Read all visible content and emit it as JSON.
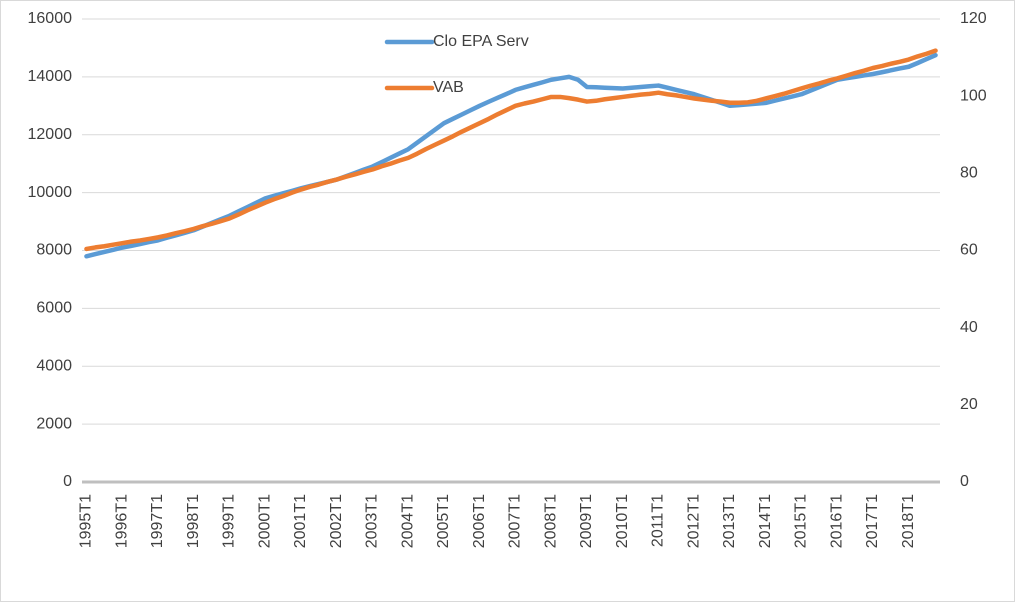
{
  "chart_data": {
    "type": "line",
    "categories": [
      "1995T1",
      null,
      null,
      null,
      "1996T1",
      null,
      null,
      null,
      "1997T1",
      null,
      null,
      null,
      "1998T1",
      null,
      null,
      null,
      "1999T1",
      null,
      null,
      null,
      "2000T1",
      null,
      null,
      null,
      "2001T1",
      null,
      null,
      null,
      "2002T1",
      null,
      null,
      null,
      "2003T1",
      null,
      null,
      null,
      "2004T1",
      null,
      null,
      null,
      "2005T1",
      null,
      null,
      null,
      "2006T1",
      null,
      null,
      null,
      "2007T1",
      null,
      null,
      null,
      "2008T1",
      null,
      null,
      null,
      "2009T1",
      null,
      null,
      null,
      "2010T1",
      null,
      null,
      null,
      "2011T1",
      null,
      null,
      null,
      "2012T1",
      null,
      null,
      null,
      "2013T1",
      null,
      null,
      null,
      "2014T1",
      null,
      null,
      null,
      "2015T1",
      null,
      null,
      null,
      "2016T1",
      null,
      null,
      null,
      "2017T1",
      null,
      null,
      null,
      "2018T1",
      null,
      null,
      null
    ],
    "series": [
      {
        "name": "Clo EPA Serv",
        "color": "#5b9bd5",
        "values": [
          7800,
          7875,
          7950,
          8025,
          8100,
          8160,
          8225,
          8290,
          8350,
          8440,
          8525,
          8610,
          8700,
          8825,
          8950,
          9075,
          9200,
          9350,
          9500,
          9650,
          9800,
          9890,
          9975,
          10060,
          10150,
          10225,
          10300,
          10375,
          10450,
          10560,
          10675,
          10790,
          10900,
          11050,
          11200,
          11350,
          11500,
          11725,
          11950,
          12175,
          12400,
          12550,
          12700,
          12850,
          13000,
          13140,
          13275,
          13410,
          13550,
          13640,
          13725,
          13810,
          13900,
          13950,
          14000,
          13900,
          13650,
          13640,
          13625,
          13610,
          13600,
          13625,
          13650,
          13675,
          13700,
          13625,
          13550,
          13475,
          13400,
          13300,
          13200,
          13100,
          13000,
          13025,
          13050,
          13075,
          13100,
          13175,
          13250,
          13325,
          13400,
          13525,
          13650,
          13775,
          13900,
          13950,
          14000,
          14050,
          14100,
          14160,
          14225,
          14290,
          14350,
          14480,
          14615,
          14750
        ]
      },
      {
        "name": "VAB",
        "color": "#ed7d31",
        "axis": "y2",
        "values": [
          60.4,
          60.8,
          61.1,
          61.5,
          61.9,
          62.3,
          62.6,
          63.0,
          63.4,
          63.9,
          64.5,
          65.0,
          65.6,
          66.3,
          66.9,
          67.6,
          68.3,
          69.3,
          70.4,
          71.4,
          72.4,
          73.3,
          74.1,
          75.0,
          75.8,
          76.5,
          77.1,
          77.8,
          78.4,
          79.1,
          79.7,
          80.4,
          81.0,
          81.8,
          82.5,
          83.3,
          84.0,
          85.1,
          86.3,
          87.4,
          88.5,
          89.6,
          90.8,
          91.9,
          93.0,
          94.1,
          95.3,
          96.4,
          97.5,
          98.1,
          98.6,
          99.2,
          99.8,
          99.8,
          99.5,
          99.1,
          98.6,
          98.8,
          99.2,
          99.5,
          99.8,
          100.1,
          100.4,
          100.6,
          100.9,
          100.5,
          100.2,
          99.8,
          99.4,
          99.1,
          98.8,
          98.6,
          98.3,
          98.3,
          98.4,
          98.8,
          99.4,
          100.0,
          100.6,
          101.3,
          102.0,
          102.7,
          103.3,
          104.0,
          104.6,
          105.3,
          106.0,
          106.6,
          107.3,
          107.8,
          108.4,
          108.9,
          109.5,
          110.3,
          111.0,
          111.8
        ]
      }
    ],
    "ylim": [
      0,
      16000
    ],
    "yticks": [
      0,
      2000,
      4000,
      6000,
      8000,
      10000,
      12000,
      14000,
      16000
    ],
    "y2lim": [
      0,
      120
    ],
    "y2ticks": [
      0,
      20,
      40,
      60,
      80,
      100,
      120
    ],
    "grid": true,
    "legend": "top-center"
  }
}
